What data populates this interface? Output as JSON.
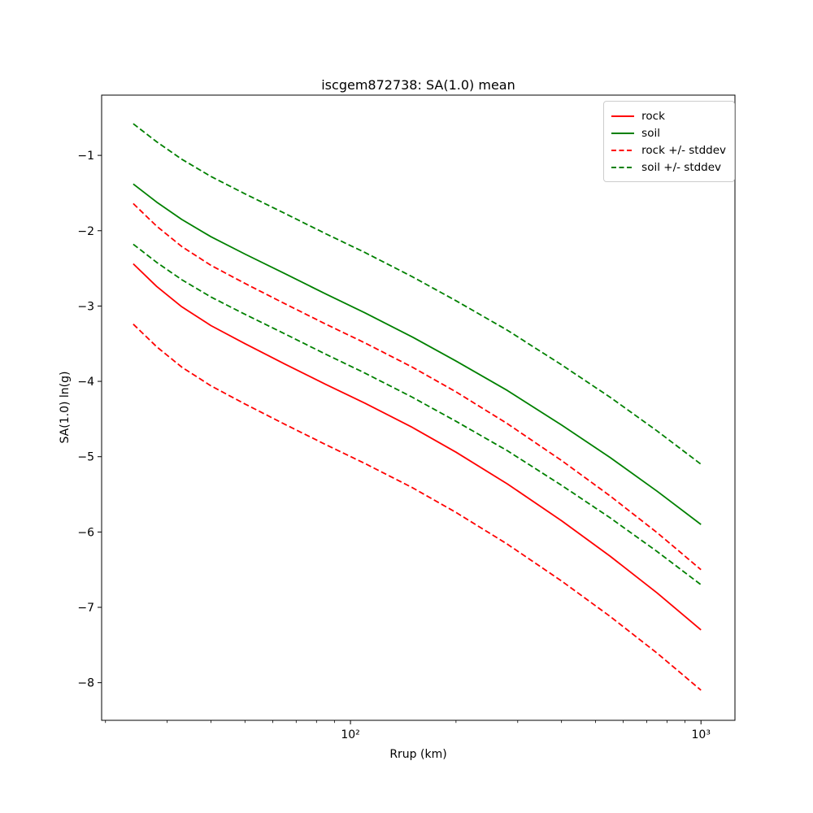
{
  "chart_data": {
    "type": "line",
    "title": "iscgem872738: SA(1.0) mean",
    "xlabel": "Rrup (km)",
    "ylabel": "SA(1.0) ln(g)",
    "xscale": "log",
    "yscale": "linear",
    "grid": false,
    "xlim": [
      19.5,
      1250
    ],
    "ylim": [
      -8.5,
      -0.2
    ],
    "x": [
      24,
      28,
      33,
      40,
      50,
      65,
      85,
      110,
      150,
      200,
      280,
      400,
      550,
      750,
      1000
    ],
    "series": [
      {
        "name": "rock",
        "color": "#ff0000",
        "linestyle": "solid",
        "values": [
          -2.44,
          -2.74,
          -3.01,
          -3.26,
          -3.5,
          -3.77,
          -4.04,
          -4.29,
          -4.61,
          -4.94,
          -5.36,
          -5.85,
          -6.32,
          -6.81,
          -7.3
        ]
      },
      {
        "name": "soil",
        "color": "#008000",
        "linestyle": "solid",
        "values": [
          -1.38,
          -1.62,
          -1.85,
          -2.08,
          -2.31,
          -2.57,
          -2.84,
          -3.09,
          -3.41,
          -3.73,
          -4.12,
          -4.58,
          -5.01,
          -5.46,
          -5.9
        ]
      },
      {
        "name": "rock + stddev",
        "color": "#ff0000",
        "linestyle": "dashed",
        "values": [
          -1.64,
          -1.94,
          -2.21,
          -2.46,
          -2.7,
          -2.97,
          -3.24,
          -3.49,
          -3.81,
          -4.14,
          -4.56,
          -5.05,
          -5.52,
          -6.01,
          -6.5
        ]
      },
      {
        "name": "rock - stddev",
        "color": "#ff0000",
        "linestyle": "dashed",
        "values": [
          -3.24,
          -3.54,
          -3.81,
          -4.06,
          -4.3,
          -4.57,
          -4.84,
          -5.09,
          -5.41,
          -5.74,
          -6.16,
          -6.65,
          -7.12,
          -7.61,
          -8.1
        ]
      },
      {
        "name": "soil + stddev",
        "color": "#008000",
        "linestyle": "dashed",
        "values": [
          -0.58,
          -0.82,
          -1.05,
          -1.28,
          -1.51,
          -1.77,
          -2.04,
          -2.29,
          -2.61,
          -2.93,
          -3.32,
          -3.78,
          -4.21,
          -4.66,
          -5.1
        ]
      },
      {
        "name": "soil - stddev",
        "color": "#008000",
        "linestyle": "dashed",
        "values": [
          -2.18,
          -2.42,
          -2.65,
          -2.88,
          -3.11,
          -3.37,
          -3.64,
          -3.89,
          -4.21,
          -4.53,
          -4.92,
          -5.38,
          -5.81,
          -6.26,
          -6.7
        ]
      }
    ],
    "legend": {
      "position": "upper right",
      "entries": [
        {
          "label": "rock",
          "color": "#ff0000",
          "linestyle": "solid"
        },
        {
          "label": "soil",
          "color": "#008000",
          "linestyle": "solid"
        },
        {
          "label": "rock +/- stddev",
          "color": "#ff0000",
          "linestyle": "dashed"
        },
        {
          "label": "soil +/- stddev",
          "color": "#008000",
          "linestyle": "dashed"
        }
      ]
    },
    "yticks": [
      -1,
      -2,
      -3,
      -4,
      -5,
      -6,
      -7,
      -8
    ],
    "xticks": [
      {
        "value": 100,
        "label": "10²"
      },
      {
        "value": 1000,
        "label": "10³"
      }
    ],
    "xminorticks": [
      20,
      30,
      40,
      50,
      60,
      70,
      80,
      90,
      200,
      300,
      400,
      500,
      600,
      700,
      800,
      900
    ],
    "colors": {
      "rock": "#ff0000",
      "soil": "#008000",
      "spine": "#000000"
    }
  }
}
